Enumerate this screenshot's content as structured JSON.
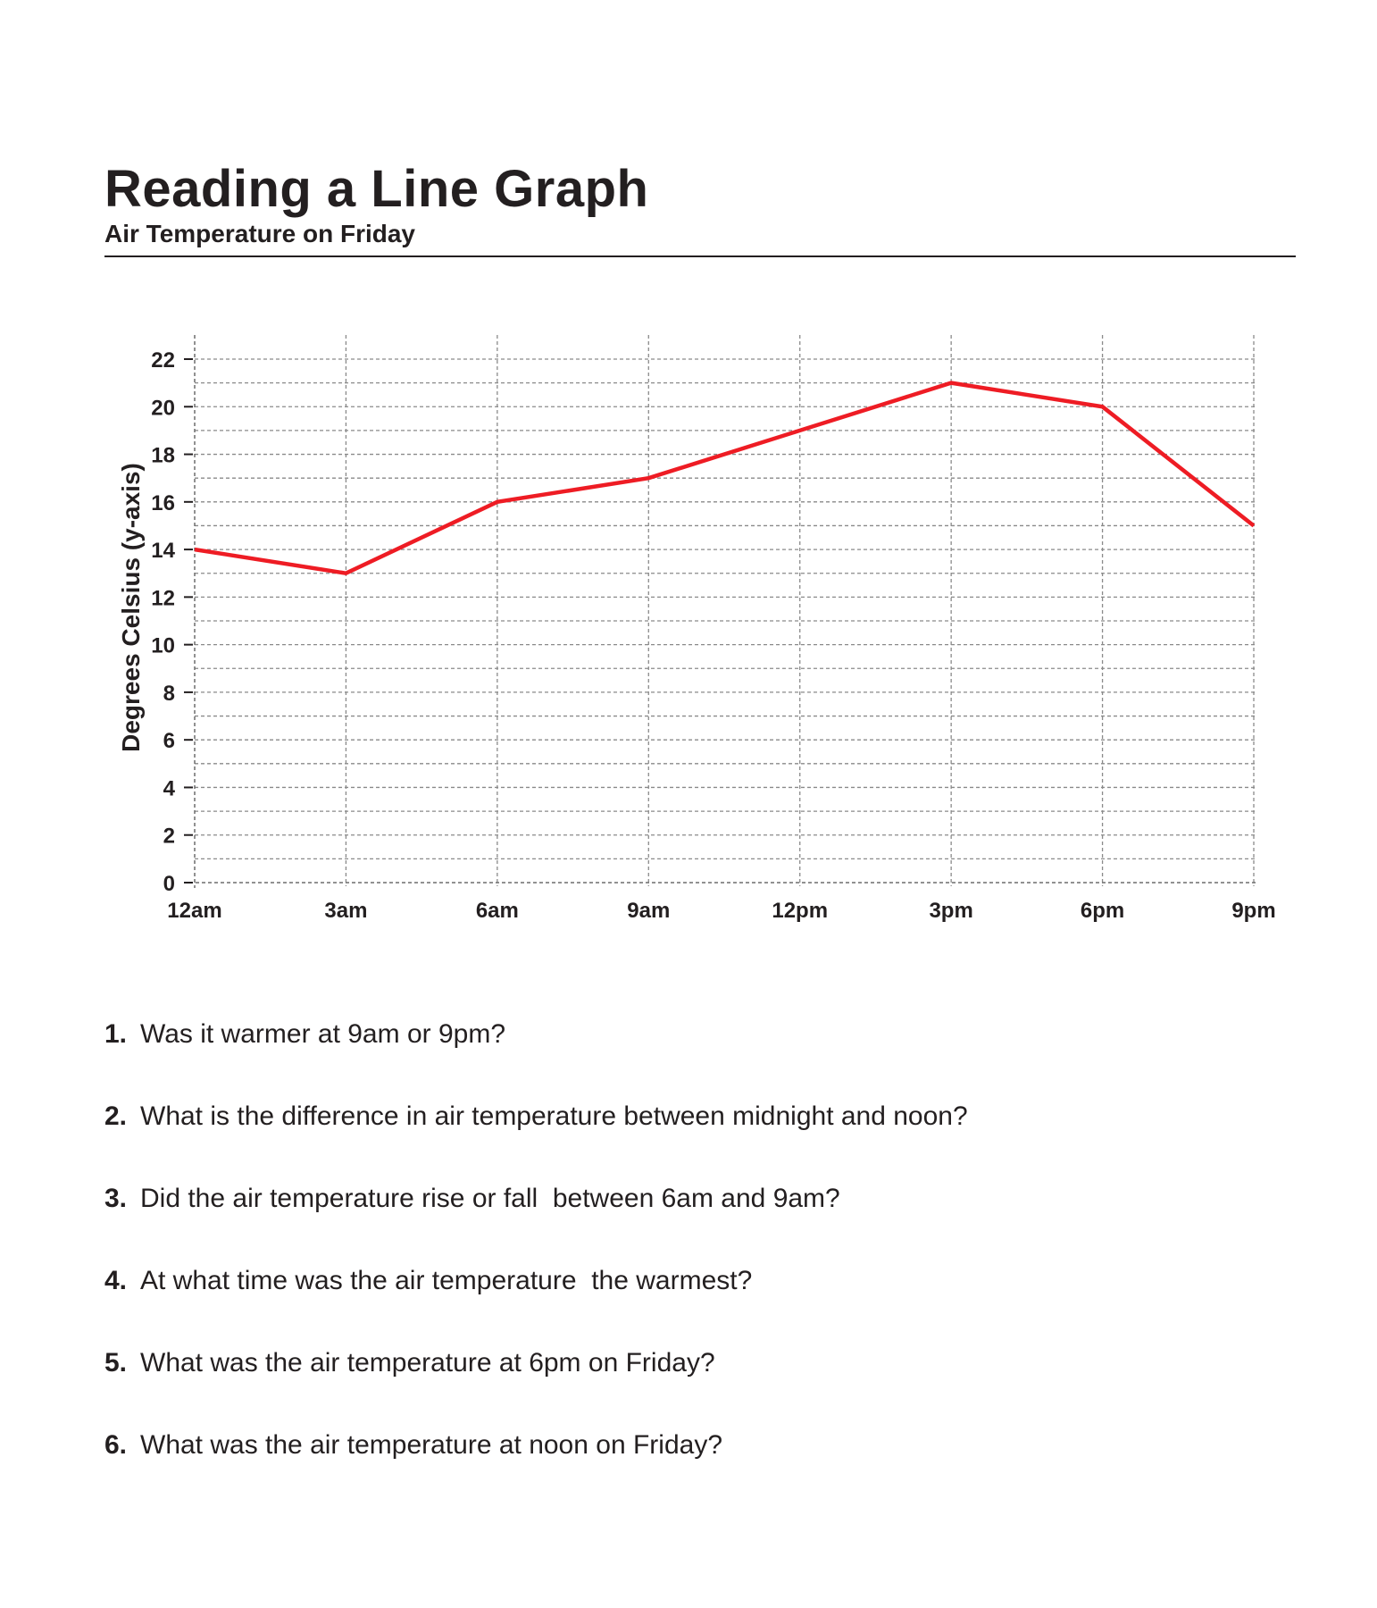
{
  "header": {
    "title": "Reading a Line Graph",
    "subtitle": "Air Temperature on Friday"
  },
  "chart_data": {
    "type": "line",
    "title": "",
    "xlabel": "",
    "ylabel": "Degrees Celsius (y-axis)",
    "categories": [
      "12am",
      "3am",
      "6am",
      "9am",
      "12pm",
      "3pm",
      "6pm",
      "9pm"
    ],
    "series": [
      {
        "values": [
          14,
          13,
          16,
          17,
          19,
          21,
          20,
          15
        ],
        "color": "#ee1c24"
      }
    ],
    "yticks": [
      0,
      2,
      4,
      6,
      8,
      10,
      12,
      14,
      16,
      18,
      20,
      22
    ],
    "ylim": [
      0,
      22
    ],
    "grid": true,
    "grid_style": "dashed",
    "legend": "none"
  },
  "questions": [
    {
      "number": "1.",
      "text": "Was it warmer at 9am or 9pm?"
    },
    {
      "number": "2.",
      "text": "What is the difference in air temperature between midnight and noon?"
    },
    {
      "number": "3.",
      "text": "Did the air temperature rise or fall  between 6am and 9am?"
    },
    {
      "number": "4.",
      "text": "At what time was the air temperature  the warmest?"
    },
    {
      "number": "5.",
      "text": "What was the air temperature at 6pm on Friday?"
    },
    {
      "number": "6.",
      "text": "What was the air temperature at noon on Friday?"
    }
  ]
}
